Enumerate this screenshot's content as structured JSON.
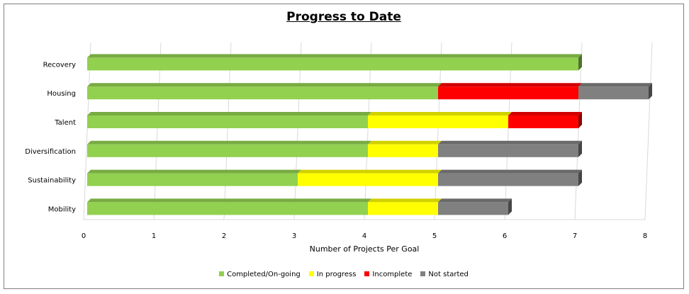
{
  "chart_data": {
    "type": "bar",
    "orientation": "horizontal",
    "stacked": true,
    "title": "Progress to Date",
    "xlabel": "Number of Projects Per Goal",
    "ylabel": "",
    "xlim": [
      0,
      8
    ],
    "x_ticks": [
      "0",
      "1",
      "2",
      "3",
      "4",
      "5",
      "6",
      "7",
      "8"
    ],
    "grid": true,
    "legend_position": "bottom",
    "categories": [
      "Recovery",
      "Housing",
      "Talent",
      "Diversification",
      "Sustainability",
      "Mobility"
    ],
    "series": [
      {
        "name": "Completed/On-going",
        "color": "#92d050",
        "values": [
          7,
          5,
          4,
          4,
          3,
          4
        ]
      },
      {
        "name": "In progress",
        "color": "#ffff00",
        "values": [
          0,
          0,
          2,
          1,
          2,
          1
        ]
      },
      {
        "name": "Incomplete",
        "color": "#ff0000",
        "values": [
          0,
          2,
          1,
          0,
          0,
          0
        ]
      },
      {
        "name": "Not started",
        "color": "#808080",
        "values": [
          0,
          1,
          0,
          2,
          2,
          1
        ]
      }
    ]
  }
}
